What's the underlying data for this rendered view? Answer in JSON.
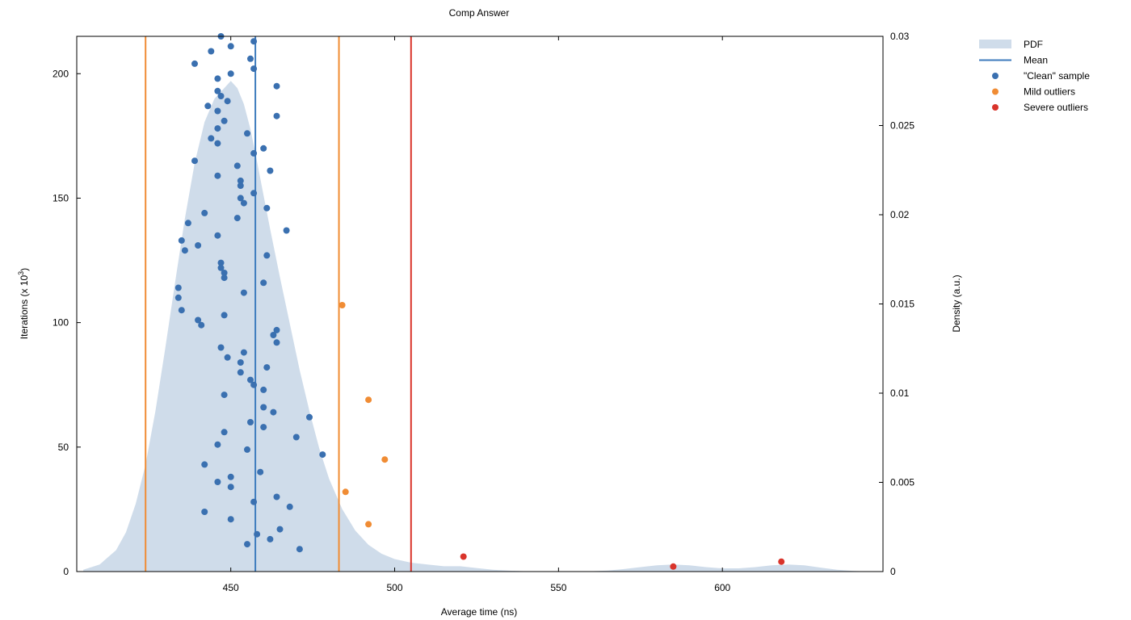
{
  "chart_data": {
    "type": "scatter",
    "title": "Comp Answer",
    "xlabel": "Average time (ns)",
    "ylabel": "Iterations (x 10",
    "ylabel_sup": "3",
    "ylabel_close": ")",
    "y2label": "Density (a.u.)",
    "xlim": [
      403,
      649
    ],
    "ylim": [
      0,
      215
    ],
    "y2lim": [
      0,
      0.03
    ],
    "xticks": [
      450,
      500,
      550,
      600
    ],
    "yticks": [
      0,
      50,
      100,
      150,
      200
    ],
    "y2ticks": [
      0,
      0.005,
      0.01,
      0.015,
      0.02,
      0.025,
      0.03
    ],
    "y2ticklabels": [
      "0",
      "0.005",
      "0.01",
      "0.015",
      "0.02",
      "0.025",
      "0.03"
    ],
    "legend_position": "top-right, outside plot",
    "legend": [
      {
        "label": "PDF",
        "kind": "area",
        "color": "#cfdcea"
      },
      {
        "label": "Mean",
        "kind": "line",
        "color": "#3d7bbd"
      },
      {
        "label": "\"Clean\" sample",
        "kind": "dot",
        "color": "#3a70b0"
      },
      {
        "label": "Mild outliers",
        "kind": "dot",
        "color": "#f08c34"
      },
      {
        "label": "Severe outliers",
        "kind": "dot",
        "color": "#d9342b"
      }
    ],
    "colors": {
      "pdf_fill": "#cfdcea",
      "mean": "#3d7bbd",
      "mild": "#f08c34",
      "severe": "#d9342b",
      "clean": "#3a70b0"
    },
    "vlines": [
      {
        "name": "mild-low-threshold",
        "x": 424,
        "color": "#f08c34"
      },
      {
        "name": "mean-line",
        "x": 457.5,
        "color": "#3d7bbd"
      },
      {
        "name": "mild-high-threshold",
        "x": 483,
        "color": "#f08c34"
      },
      {
        "name": "severe-high-threshold",
        "x": 505,
        "color": "#d9342b"
      }
    ],
    "pdf": {
      "x": [
        405,
        410,
        415,
        418,
        421,
        424,
        427,
        430,
        433,
        436,
        439,
        442,
        445,
        448,
        450,
        452,
        454,
        456,
        458,
        460,
        462,
        465,
        468,
        471,
        474,
        477,
        480,
        484,
        488,
        492,
        496,
        500,
        505,
        510,
        515,
        520,
        525,
        530,
        535,
        540,
        545,
        550,
        555,
        560,
        565,
        570,
        575,
        580,
        585,
        590,
        595,
        600,
        605,
        610,
        615,
        620,
        625,
        630,
        635,
        640,
        645
      ],
      "y": [
        0.0001,
        0.0004,
        0.0012,
        0.0022,
        0.0038,
        0.006,
        0.009,
        0.0125,
        0.0162,
        0.0198,
        0.0229,
        0.0252,
        0.0265,
        0.0271,
        0.0275,
        0.0271,
        0.0262,
        0.0248,
        0.023,
        0.0211,
        0.0192,
        0.0165,
        0.0139,
        0.0113,
        0.009,
        0.0069,
        0.0052,
        0.0035,
        0.0023,
        0.0015,
        0.001,
        0.0007,
        0.0005,
        0.0004,
        0.0003,
        0.0003,
        0.0002,
        0.0001,
        5e-05,
        2e-05,
        1e-05,
        1e-05,
        1e-05,
        2e-05,
        6e-05,
        0.00014,
        0.00025,
        0.00035,
        0.0004,
        0.00035,
        0.00025,
        0.00018,
        0.00018,
        0.00025,
        0.00035,
        0.0004,
        0.00035,
        0.00022,
        0.0001,
        3e-05,
        0.0
      ]
    },
    "series": [
      {
        "name": "\"Clean\" sample",
        "color": "#3a70b0",
        "points": [
          [
            447,
            215
          ],
          [
            457,
            213
          ],
          [
            450,
            211
          ],
          [
            444,
            209
          ],
          [
            456,
            206
          ],
          [
            439,
            204
          ],
          [
            457,
            202
          ],
          [
            450,
            200
          ],
          [
            446,
            198
          ],
          [
            464,
            195
          ],
          [
            446,
            193
          ],
          [
            447,
            191
          ],
          [
            449,
            189
          ],
          [
            443,
            187
          ],
          [
            446,
            185
          ],
          [
            464,
            183
          ],
          [
            448,
            181
          ],
          [
            446,
            178
          ],
          [
            455,
            176
          ],
          [
            444,
            174
          ],
          [
            446,
            172
          ],
          [
            460,
            170
          ],
          [
            457,
            168
          ],
          [
            439,
            165
          ],
          [
            452,
            163
          ],
          [
            462,
            161
          ],
          [
            446,
            159
          ],
          [
            453,
            157
          ],
          [
            453,
            155
          ],
          [
            457,
            152
          ],
          [
            453,
            150
          ],
          [
            454,
            148
          ],
          [
            461,
            146
          ],
          [
            442,
            144
          ],
          [
            452,
            142
          ],
          [
            437,
            140
          ],
          [
            467,
            137
          ],
          [
            446,
            135
          ],
          [
            435,
            133
          ],
          [
            440,
            131
          ],
          [
            436,
            129
          ],
          [
            461,
            127
          ],
          [
            447,
            124
          ],
          [
            447,
            122
          ],
          [
            448,
            120
          ],
          [
            448,
            118
          ],
          [
            460,
            116
          ],
          [
            434,
            114
          ],
          [
            454,
            112
          ],
          [
            434,
            110
          ],
          [
            435,
            105
          ],
          [
            448,
            103
          ],
          [
            440,
            101
          ],
          [
            441,
            99
          ],
          [
            464,
            97
          ],
          [
            463,
            95
          ],
          [
            464,
            92
          ],
          [
            447,
            90
          ],
          [
            454,
            88
          ],
          [
            449,
            86
          ],
          [
            453,
            84
          ],
          [
            461,
            82
          ],
          [
            453,
            80
          ],
          [
            456,
            77
          ],
          [
            457,
            75
          ],
          [
            460,
            73
          ],
          [
            448,
            71
          ],
          [
            460,
            66
          ],
          [
            463,
            64
          ],
          [
            474,
            62
          ],
          [
            456,
            60
          ],
          [
            460,
            58
          ],
          [
            448,
            56
          ],
          [
            470,
            54
          ],
          [
            446,
            51
          ],
          [
            455,
            49
          ],
          [
            478,
            47
          ],
          [
            442,
            43
          ],
          [
            459,
            40
          ],
          [
            450,
            38
          ],
          [
            446,
            36
          ],
          [
            450,
            34
          ],
          [
            464,
            30
          ],
          [
            457,
            28
          ],
          [
            468,
            26
          ],
          [
            442,
            24
          ],
          [
            450,
            21
          ],
          [
            465,
            17
          ],
          [
            458,
            15
          ],
          [
            462,
            13
          ],
          [
            455,
            11
          ],
          [
            471,
            9
          ]
        ]
      },
      {
        "name": "Mild outliers",
        "color": "#f08c34",
        "points": [
          [
            484,
            107
          ],
          [
            492,
            69
          ],
          [
            497,
            45
          ],
          [
            485,
            32
          ],
          [
            492,
            19
          ]
        ]
      },
      {
        "name": "Severe outliers",
        "color": "#d9342b",
        "points": [
          [
            521,
            6
          ],
          [
            585,
            2
          ],
          [
            618,
            4
          ]
        ]
      }
    ]
  }
}
